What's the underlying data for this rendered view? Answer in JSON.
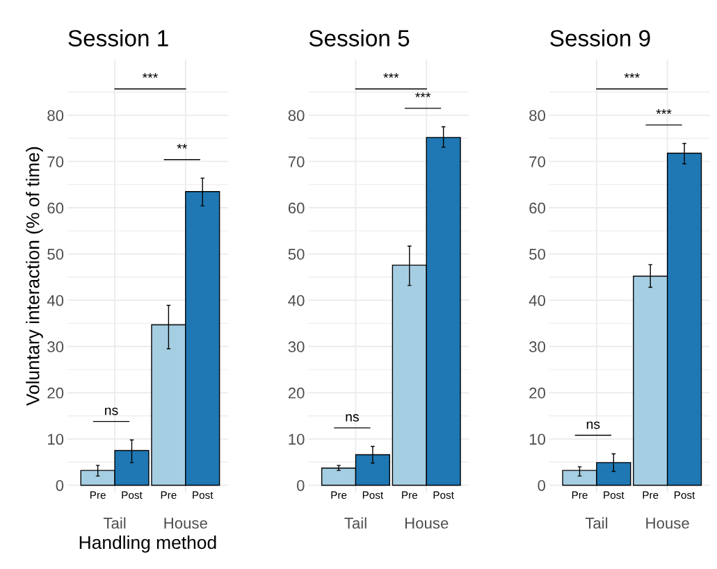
{
  "chart_data": [
    {
      "type": "bar",
      "title": "Session 1",
      "xlabel": "Handling method",
      "ylabel": "Voluntary interaction (% of time)",
      "categories": [
        "Tail",
        "House"
      ],
      "series": [
        {
          "name": "Pre",
          "color": "#a6cee3",
          "values": [
            3.2,
            34.7
          ],
          "errors": [
            [
              2.0,
              4.3
            ],
            [
              29.5,
              38.9
            ]
          ]
        },
        {
          "name": "Post",
          "color": "#1f78b4",
          "values": [
            7.5,
            63.5
          ],
          "errors": [
            [
              4.9,
              9.8
            ],
            [
              60.4,
              66.4
            ]
          ]
        }
      ],
      "ylim": [
        -1.5,
        92
      ],
      "yticks": [
        0,
        10,
        20,
        30,
        40,
        50,
        60,
        70,
        80
      ],
      "grid": true,
      "legend": "bottom",
      "annotations": [
        "ns",
        "**",
        "***"
      ]
    },
    {
      "type": "bar",
      "title": "Session 5",
      "categories": [
        "Tail",
        "House"
      ],
      "series": [
        {
          "name": "Pre",
          "color": "#a6cee3",
          "values": [
            3.7,
            47.6
          ],
          "errors": [
            [
              3.2,
              4.3
            ],
            [
              43.2,
              51.7
            ]
          ]
        },
        {
          "name": "Post",
          "color": "#1f78b4",
          "values": [
            6.6,
            75.2
          ],
          "errors": [
            [
              4.8,
              8.4
            ],
            [
              73.1,
              77.5
            ]
          ]
        }
      ],
      "ylim": [
        -1.5,
        92
      ],
      "yticks": [
        0,
        10,
        20,
        30,
        40,
        50,
        60,
        70,
        80
      ],
      "grid": true,
      "legend": "bottom",
      "annotations": [
        "ns",
        "***",
        "***"
      ]
    },
    {
      "type": "bar",
      "title": "Session 9",
      "categories": [
        "Tail",
        "House"
      ],
      "series": [
        {
          "name": "Pre",
          "color": "#a6cee3",
          "values": [
            3.2,
            45.2
          ],
          "errors": [
            [
              2.0,
              4.0
            ],
            [
              42.8,
              47.7
            ]
          ]
        },
        {
          "name": "Post",
          "color": "#1f78b4",
          "values": [
            4.9,
            71.8
          ],
          "errors": [
            [
              3.0,
              6.8
            ],
            [
              69.5,
              73.9
            ]
          ]
        }
      ],
      "ylim": [
        -1.5,
        92
      ],
      "yticks": [
        0,
        10,
        20,
        30,
        40,
        50,
        60,
        70,
        80
      ],
      "grid": true,
      "legend": "bottom",
      "annotations": [
        "ns",
        "***",
        "***"
      ]
    }
  ]
}
